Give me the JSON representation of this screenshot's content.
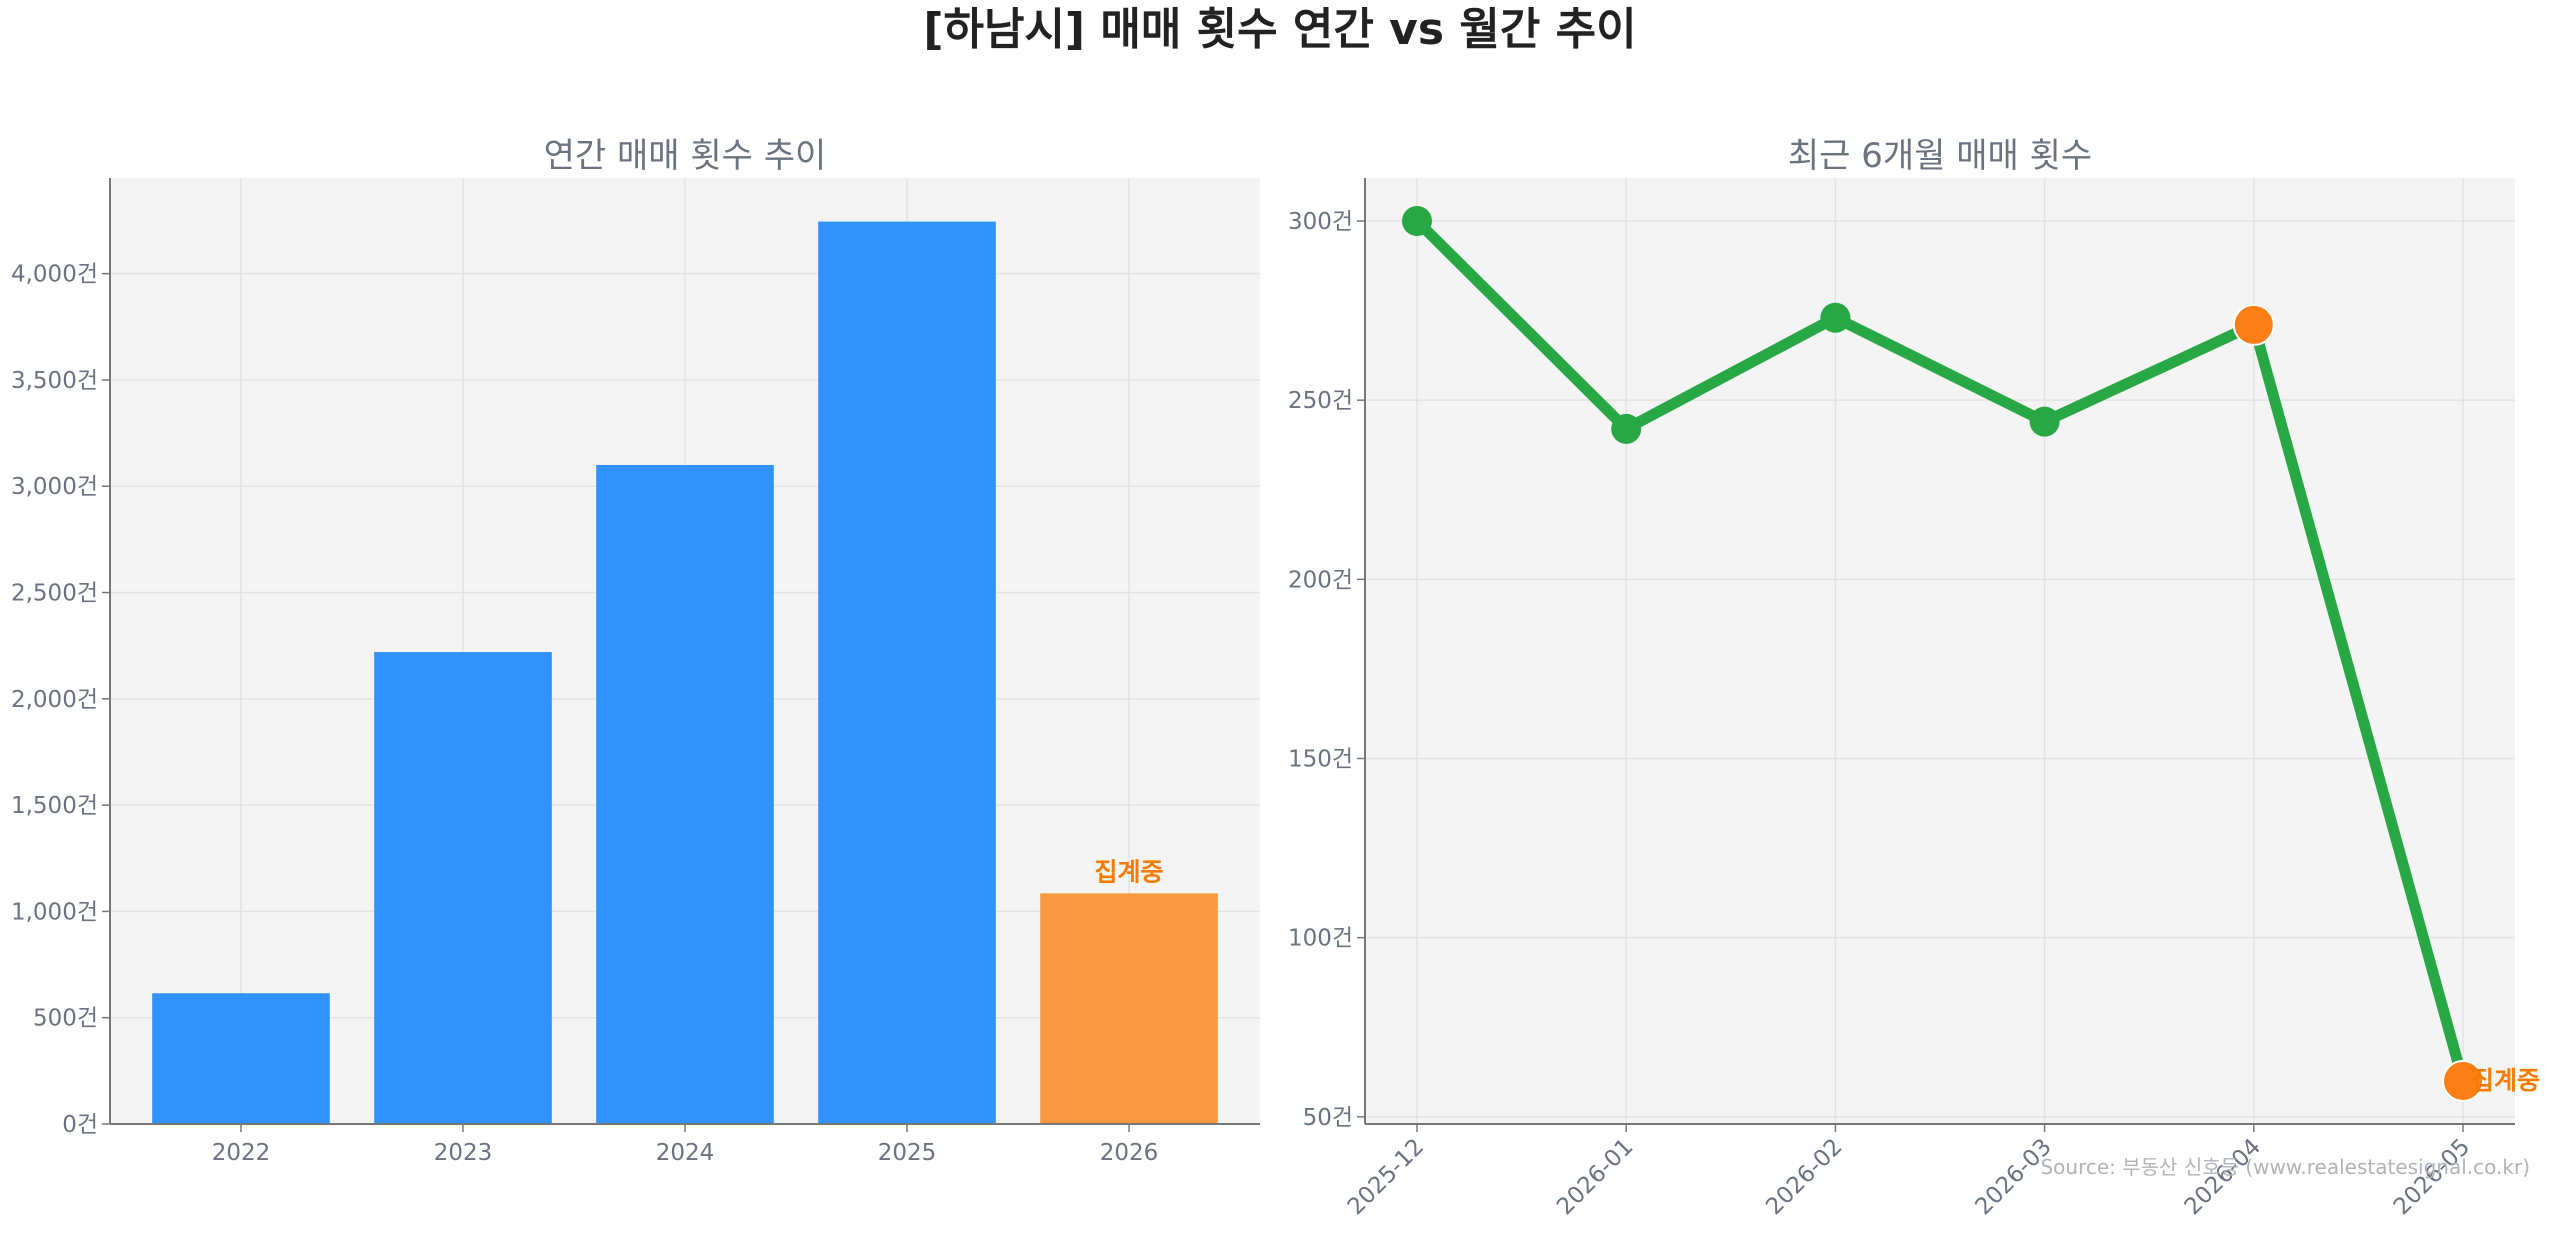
{
  "page": {
    "title": "[하남시] 매매 횟수 연간 vs 월간 추이",
    "source": "Source: 부동산 신호등 (www.realestatesignal.co.kr)"
  },
  "chart_data": [
    {
      "type": "bar",
      "title": "연간 매매 횟수 추이",
      "xlabel": "",
      "ylabel": "",
      "categories": [
        "2022",
        "2023",
        "2024",
        "2025",
        "2026"
      ],
      "values": [
        615,
        2220,
        3100,
        4245,
        1085
      ],
      "ylim": [
        0,
        4450
      ],
      "yticks": [
        0,
        500,
        1000,
        1500,
        2000,
        2500,
        3000,
        3500,
        4000
      ],
      "ytick_labels": [
        "0건",
        "500건",
        "1,000건",
        "1,500건",
        "2,000건",
        "2,500건",
        "3,000건",
        "3,500건",
        "4,000건"
      ],
      "bar_color": "#3192fb",
      "highlight_color": "#f99841",
      "highlight_index": 4,
      "highlight_note": "집계중",
      "grid": true
    },
    {
      "type": "line",
      "title": "최근 6개월 매매 횟수",
      "xlabel": "",
      "ylabel": "",
      "x": [
        "2025-12",
        "2026-01",
        "2026-02",
        "2026-03",
        "2026-04",
        "2026-05"
      ],
      "values": [
        300,
        242,
        273,
        244,
        271,
        60
      ],
      "ylim": [
        48,
        312
      ],
      "yticks": [
        50,
        100,
        150,
        200,
        250,
        300
      ],
      "ytick_labels": [
        "50건",
        "100건",
        "150건",
        "200건",
        "250건",
        "300건"
      ],
      "line_color": "#28a745",
      "highlight_color": "#fd7e14",
      "highlight_indices": [
        4,
        5
      ],
      "highlight_note": "집계중",
      "grid": true
    }
  ]
}
